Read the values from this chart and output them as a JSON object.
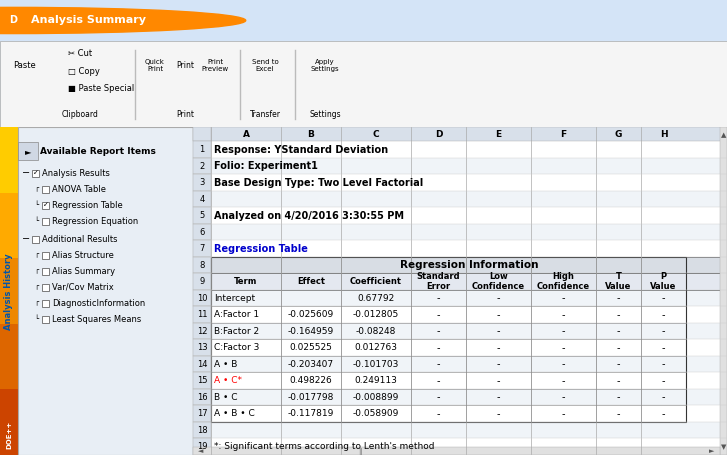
{
  "title": "Analysis Summary",
  "toolbar_items": [
    "Cut",
    "Copy",
    "Paste Special",
    "Quick Print",
    "Print",
    "Print Preview",
    "Send to Excel",
    "Apply Settings"
  ],
  "report_items": {
    "Analysis Results": [
      "ANOVA Table",
      "Regression Table",
      "Regression Equation"
    ],
    "Additional Results": [
      "Alias Structure",
      "Alias Summary",
      "Var/Cov Matrix",
      "DiagnosticInformation",
      "Least Squares Means"
    ]
  },
  "checked_items": [
    "Analysis Results",
    "Regression Table"
  ],
  "meta_rows": [
    "Response: YStandard Deviation",
    "Folio: Experiment1",
    "Base Design Type: Two Level Factorial",
    "",
    "Analyzed on 4/20/2016 3:30:55 PM"
  ],
  "regression_link": "Regression Table",
  "regression_header": "Regression Information",
  "col_headers": [
    "Term",
    "Effect",
    "Coefficient",
    "Standard\nError",
    "Low\nConfidence",
    "High\nConfidence",
    "T\nValue",
    "P\nValue"
  ],
  "rows": [
    {
      "row": 10,
      "term": "Intercept",
      "term_color": "black",
      "effect": "",
      "coefficient": "0.67792",
      "dash_cols": 5
    },
    {
      "row": 11,
      "term": "A:Factor 1",
      "term_color": "black",
      "effect": "-0.025609",
      "coefficient": "-0.012805",
      "dash_cols": 5
    },
    {
      "row": 12,
      "term": "B:Factor 2",
      "term_color": "black",
      "effect": "-0.164959",
      "coefficient": "-0.08248",
      "dash_cols": 5
    },
    {
      "row": 13,
      "term": "C:Factor 3",
      "term_color": "black",
      "effect": "0.025525",
      "coefficient": "0.012763",
      "dash_cols": 5
    },
    {
      "row": 14,
      "term": "A • B",
      "term_color": "black",
      "effect": "-0.203407",
      "coefficient": "-0.101703",
      "dash_cols": 5
    },
    {
      "row": 15,
      "term": "A • C*",
      "term_color": "red",
      "effect": "0.498226",
      "coefficient": "0.249113",
      "dash_cols": 5
    },
    {
      "row": 16,
      "term": "B • C",
      "term_color": "black",
      "effect": "-0.017798",
      "coefficient": "-0.008899",
      "dash_cols": 5
    },
    {
      "row": 17,
      "term": "A • B • C",
      "term_color": "black",
      "effect": "-0.117819",
      "coefficient": "-0.058909",
      "dash_cols": 5
    }
  ],
  "footnote": "*: Significant terms according to Lenth's method",
  "sidebar_text": "Analysis History",
  "sidebar_colors": [
    "#cc4400",
    "#ff8800",
    "#ffcc00"
  ],
  "bg_color": "#d4e4f7",
  "header_bg": "#c8d8e8",
  "table_bg": "#ffffff",
  "table_header_bg": "#d0d8e0",
  "row_line_color": "#aaaaaa",
  "link_color": "#0000cc",
  "row_numbers": [
    1,
    2,
    3,
    4,
    5,
    6,
    7,
    8,
    9,
    10,
    11,
    12,
    13,
    14,
    15,
    16,
    17,
    18,
    19
  ]
}
